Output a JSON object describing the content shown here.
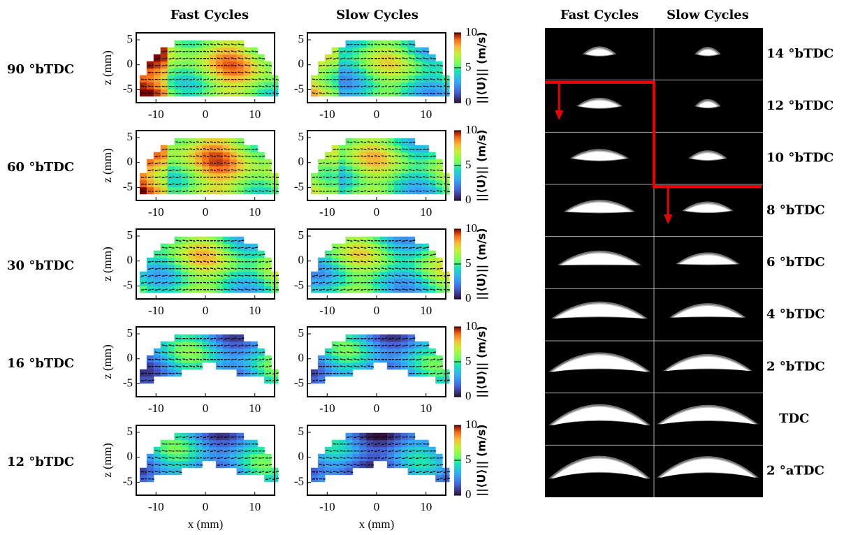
{
  "left": {
    "column_titles": [
      "Fast Cycles",
      "Slow Cycles"
    ],
    "row_labels": [
      "90 °bTDC",
      "60 °bTDC",
      "30 °bTDC",
      "16 °bTDC",
      "12 °bTDC"
    ],
    "xlabel": "x (mm)",
    "ylabel": "z (mm)",
    "xlim": [
      -14,
      14
    ],
    "xticks": [
      -10,
      0,
      10
    ],
    "zlim": [
      -7.6,
      6.4
    ],
    "zticks": [
      5,
      0,
      -5
    ],
    "colorbar": {
      "label": "||⟨U⟩|| (m/s)",
      "lim": [
        0,
        10
      ],
      "ticks": [
        0,
        5,
        10
      ]
    }
  },
  "right": {
    "column_titles": [
      "Fast Cycles",
      "Slow Cycles"
    ],
    "row_labels": [
      "14 °bTDC",
      "12 °bTDC",
      "10 °bTDC",
      "8 °bTDC",
      "6 °bTDC",
      "4 °bTDC",
      "2 °bTDC",
      "TDC",
      "2 °aTDC"
    ]
  }
}
